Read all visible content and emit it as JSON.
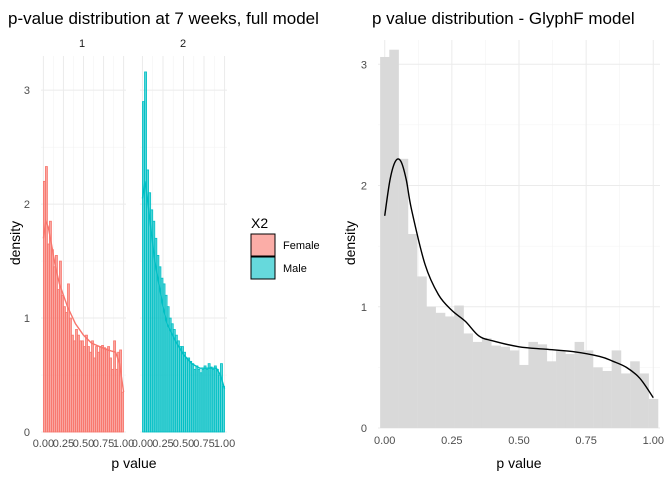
{
  "chart_data": [
    {
      "type": "bar",
      "subtype": "faceted histogram with density",
      "title": "p-value distribution at 7 weeks, full model",
      "xlabel": "p value",
      "ylabel": "density",
      "xlim": [
        0,
        1
      ],
      "ylim": [
        0,
        3.3
      ],
      "xticks": [
        "0.00",
        "0.25",
        "0.50",
        "0.75",
        "1.00"
      ],
      "yticks": [
        "0",
        "1",
        "2",
        "3"
      ],
      "grid": true,
      "legend": {
        "title": "X2",
        "placement": "right",
        "entries": [
          {
            "label": "Female",
            "fill": "#F8766D"
          },
          {
            "label": "Male",
            "fill": "#00BFC4"
          }
        ]
      },
      "facets": [
        {
          "strip": "1",
          "series": "Female",
          "color": "#F8766D",
          "bin_width": 0.025,
          "values": [
            2.2,
            2.33,
            1.65,
            1.85,
            1.6,
            1.45,
            1.55,
            1.25,
            1.5,
            1.2,
            1.1,
            1.05,
            1.3,
            1.0,
            0.85,
            0.8,
            0.9,
            0.85,
            0.8,
            0.8,
            0.75,
            0.85,
            0.75,
            0.7,
            0.8,
            0.65,
            0.75,
            0.7,
            0.75,
            0.76,
            0.74,
            0.73,
            0.75,
            0.65,
            0.55,
            0.8,
            0.55,
            0.7,
            0.72,
            0.35
          ],
          "density_x": [
            0,
            0.03,
            0.06,
            0.1,
            0.15,
            0.2,
            0.3,
            0.4,
            0.5,
            0.6,
            0.7,
            0.8,
            0.9,
            0.95,
            1.0
          ],
          "density_y": [
            1.7,
            1.85,
            1.8,
            1.65,
            1.45,
            1.3,
            1.1,
            0.95,
            0.85,
            0.78,
            0.75,
            0.72,
            0.7,
            0.6,
            0.35
          ]
        },
        {
          "strip": "2",
          "series": "Male",
          "color": "#00BFC4",
          "bin_width": 0.025,
          "values": [
            2.9,
            3.16,
            2.3,
            2.1,
            1.95,
            1.85,
            1.7,
            1.55,
            1.45,
            1.35,
            1.3,
            1.2,
            1.1,
            1.0,
            0.95,
            0.9,
            0.85,
            0.8,
            0.75,
            0.75,
            0.7,
            0.65,
            0.65,
            0.62,
            0.6,
            0.55,
            0.58,
            0.55,
            0.52,
            0.55,
            0.58,
            0.55,
            0.6,
            0.57,
            0.55,
            0.58,
            0.55,
            0.5,
            0.6,
            0.4
          ],
          "density_x": [
            0,
            0.03,
            0.06,
            0.1,
            0.15,
            0.2,
            0.25,
            0.3,
            0.4,
            0.5,
            0.6,
            0.7,
            0.8,
            0.9,
            0.95,
            1.0
          ],
          "density_y": [
            2.05,
            2.2,
            2.05,
            1.8,
            1.5,
            1.3,
            1.1,
            0.95,
            0.8,
            0.68,
            0.6,
            0.56,
            0.56,
            0.56,
            0.5,
            0.38
          ]
        }
      ]
    },
    {
      "type": "bar",
      "subtype": "histogram with density",
      "title": "p value distribution - GlyphF model",
      "xlabel": "p value",
      "ylabel": "density",
      "xlim": [
        -0.025,
        1.025
      ],
      "ylim": [
        0,
        3.2
      ],
      "xticks": [
        "0.00",
        "0.25",
        "0.50",
        "0.75",
        "1.00"
      ],
      "yticks": [
        "0",
        "1",
        "2",
        "3"
      ],
      "grid": true,
      "bar_color": "#d9d9d9",
      "line_color": "#000000",
      "bin_width": 0.0345,
      "bin_starts": [
        -0.017,
        0.017,
        0.052,
        0.086,
        0.121,
        0.155,
        0.19,
        0.224,
        0.259,
        0.293,
        0.328,
        0.362,
        0.397,
        0.431,
        0.466,
        0.5,
        0.535,
        0.569,
        0.603,
        0.638,
        0.672,
        0.707,
        0.741,
        0.776,
        0.81,
        0.845,
        0.879,
        0.914,
        0.948,
        0.983
      ],
      "values": [
        3.06,
        3.12,
        2.22,
        1.6,
        1.25,
        1.0,
        0.95,
        0.92,
        1.01,
        0.78,
        0.71,
        0.74,
        0.68,
        0.67,
        0.64,
        0.52,
        0.71,
        0.69,
        0.55,
        0.64,
        0.61,
        0.71,
        0.64,
        0.5,
        0.47,
        0.64,
        0.45,
        0.55,
        0.45,
        0.24
      ],
      "density_x": [
        0,
        0.02,
        0.04,
        0.06,
        0.08,
        0.1,
        0.15,
        0.2,
        0.25,
        0.3,
        0.35,
        0.4,
        0.5,
        0.6,
        0.7,
        0.8,
        0.85,
        0.9,
        0.95,
        1.0
      ],
      "density_y": [
        1.75,
        2.05,
        2.2,
        2.2,
        2.05,
        1.8,
        1.35,
        1.1,
        0.97,
        0.88,
        0.76,
        0.72,
        0.67,
        0.65,
        0.63,
        0.59,
        0.55,
        0.5,
        0.41,
        0.25
      ]
    }
  ]
}
